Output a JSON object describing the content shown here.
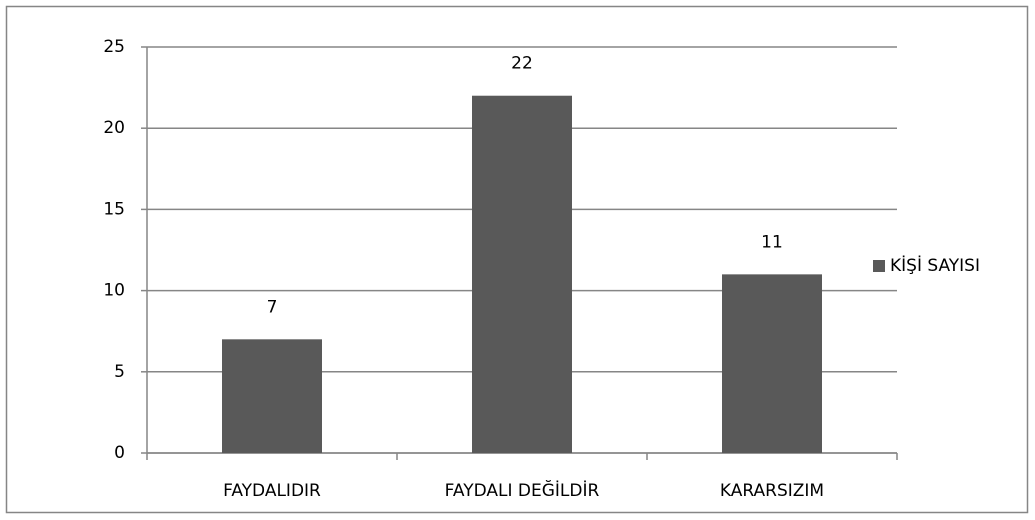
{
  "chart_data": {
    "type": "bar",
    "categories": [
      "FAYDALIDIR",
      "FAYDALI DEĞİLDİR",
      "KARARSIZIM"
    ],
    "series": [
      {
        "name": "KİŞİ SAYISI",
        "color": "#595959",
        "values": [
          7,
          22,
          11
        ]
      }
    ],
    "ylim": [
      0,
      25
    ],
    "yticks": [
      0,
      5,
      10,
      15,
      20,
      25
    ],
    "grid": true,
    "legend": "right"
  }
}
